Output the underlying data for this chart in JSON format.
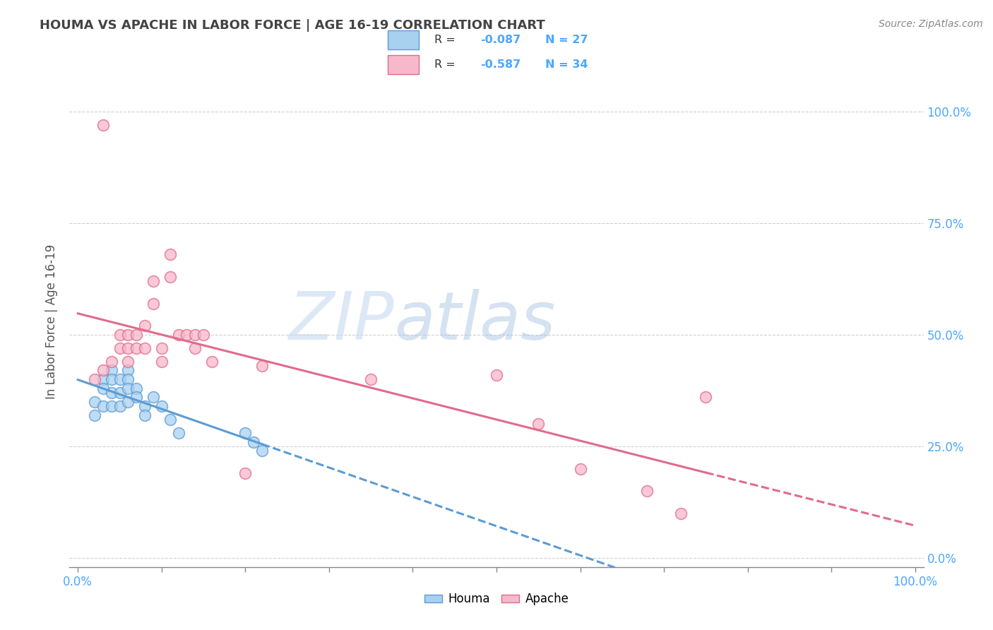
{
  "title": "HOUMA VS APACHE IN LABOR FORCE | AGE 16-19 CORRELATION CHART",
  "source_text": "Source: ZipAtlas.com",
  "ylabel": "In Labor Force | Age 16-19",
  "houma_color": "#a8d1f0",
  "apache_color": "#f7b8cb",
  "houma_line_color": "#5b9bd5",
  "apache_line_color": "#e06b8b",
  "houma_R": -0.087,
  "houma_N": 27,
  "apache_R": -0.587,
  "apache_N": 34,
  "xlim": [
    -0.01,
    1.01
  ],
  "ylim": [
    -0.02,
    1.08
  ],
  "ytick_positions": [
    0.0,
    0.25,
    0.5,
    0.75,
    1.0
  ],
  "xtick_positions": [
    0.0,
    0.1,
    0.2,
    0.3,
    0.4,
    0.5,
    0.6,
    0.7,
    0.8,
    0.9,
    1.0
  ],
  "grid_color": "#d0d0d0",
  "background_color": "#ffffff",
  "houma_x": [
    0.02,
    0.02,
    0.03,
    0.03,
    0.03,
    0.04,
    0.04,
    0.04,
    0.04,
    0.05,
    0.05,
    0.05,
    0.06,
    0.06,
    0.06,
    0.06,
    0.07,
    0.07,
    0.08,
    0.08,
    0.09,
    0.1,
    0.11,
    0.12,
    0.2,
    0.21,
    0.22
  ],
  "houma_y": [
    0.35,
    0.32,
    0.4,
    0.38,
    0.34,
    0.42,
    0.4,
    0.37,
    0.34,
    0.4,
    0.37,
    0.34,
    0.42,
    0.4,
    0.38,
    0.35,
    0.38,
    0.36,
    0.34,
    0.32,
    0.36,
    0.34,
    0.31,
    0.28,
    0.28,
    0.26,
    0.24
  ],
  "apache_x": [
    0.02,
    0.03,
    0.03,
    0.04,
    0.05,
    0.05,
    0.06,
    0.06,
    0.06,
    0.07,
    0.07,
    0.08,
    0.08,
    0.09,
    0.09,
    0.1,
    0.1,
    0.11,
    0.11,
    0.12,
    0.13,
    0.14,
    0.14,
    0.15,
    0.16,
    0.2,
    0.22,
    0.35,
    0.5,
    0.55,
    0.6,
    0.68,
    0.72,
    0.75
  ],
  "apache_y": [
    0.4,
    0.97,
    0.42,
    0.44,
    0.5,
    0.47,
    0.5,
    0.47,
    0.44,
    0.5,
    0.47,
    0.52,
    0.47,
    0.62,
    0.57,
    0.47,
    0.44,
    0.68,
    0.63,
    0.5,
    0.5,
    0.5,
    0.47,
    0.5,
    0.44,
    0.19,
    0.43,
    0.4,
    0.41,
    0.3,
    0.2,
    0.15,
    0.1,
    0.36
  ],
  "legend_label_houma": "Houma",
  "legend_label_apache": "Apache",
  "title_color": "#444444",
  "source_color": "#888888",
  "axis_label_color": "#555555",
  "tick_label_color": "#4da6ff",
  "watermark_zip_color": "#c5d9f0",
  "watermark_atlas_color": "#a0bfe0"
}
